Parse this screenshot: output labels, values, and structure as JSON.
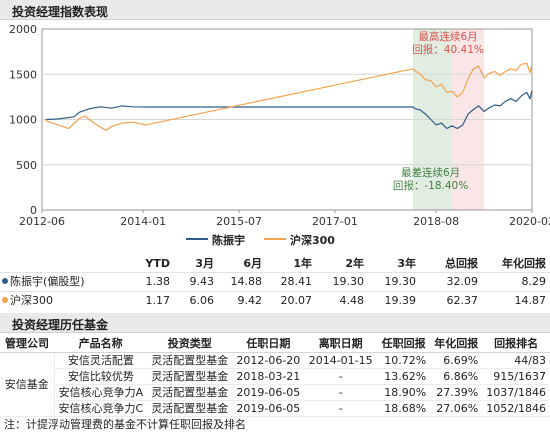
{
  "section1": {
    "title": "投资经理指数表现"
  },
  "chart_data": {
    "type": "line",
    "x_ticks": [
      "2012-06",
      "2014-01",
      "2015-07",
      "2017-01",
      "2018-08",
      "2020-02"
    ],
    "y_ticks": [
      "2000",
      "1500",
      "1000",
      "500",
      "0"
    ],
    "ylim": [
      0,
      2000
    ],
    "xlim": [
      "2012-06",
      "2020-02"
    ],
    "series": [
      {
        "name": "陈振宇",
        "color": "#2f5d8a",
        "points": [
          [
            "2012-06-20",
            1000
          ],
          [
            "2012-09",
            1005
          ],
          [
            "2012-12",
            1030
          ],
          [
            "2013-01",
            1080
          ],
          [
            "2013-03",
            1120
          ],
          [
            "2013-05",
            1140
          ],
          [
            "2013-07",
            1125
          ],
          [
            "2013-09",
            1150
          ],
          [
            "2013-11",
            1140
          ],
          [
            "2014-01-15",
            1138
          ],
          [
            "2018-03-21",
            1138
          ],
          [
            "2018-04",
            1120
          ],
          [
            "2018-05",
            1105
          ],
          [
            "2018-06",
            1060
          ],
          [
            "2018-07",
            1000
          ],
          [
            "2018-08",
            940
          ],
          [
            "2018-09",
            960
          ],
          [
            "2018-10",
            900
          ],
          [
            "2018-11",
            930
          ],
          [
            "2018-12",
            900
          ],
          [
            "2019-01",
            940
          ],
          [
            "2019-02",
            1060
          ],
          [
            "2019-03",
            1110
          ],
          [
            "2019-04",
            1150
          ],
          [
            "2019-05",
            1090
          ],
          [
            "2019-06",
            1130
          ],
          [
            "2019-07",
            1160
          ],
          [
            "2019-08",
            1150
          ],
          [
            "2019-09",
            1200
          ],
          [
            "2019-10",
            1230
          ],
          [
            "2019-11",
            1200
          ],
          [
            "2019-12",
            1260
          ],
          [
            "2020-01",
            1300
          ],
          [
            "2020-01-20",
            1230
          ],
          [
            "2020-02",
            1320
          ]
        ]
      },
      {
        "name": "沪深300",
        "color": "#f2a24a",
        "points": [
          [
            "2012-06-20",
            1000
          ],
          [
            "2012-07",
            980
          ],
          [
            "2012-09",
            940
          ],
          [
            "2012-11",
            900
          ],
          [
            "2013-01",
            1010
          ],
          [
            "2013-02",
            1040
          ],
          [
            "2013-04",
            950
          ],
          [
            "2013-06",
            880
          ],
          [
            "2013-07",
            920
          ],
          [
            "2013-09",
            960
          ],
          [
            "2013-11",
            970
          ],
          [
            "2014-01-15",
            940
          ],
          [
            "2018-03-21",
            1560
          ],
          [
            "2018-04",
            1540
          ],
          [
            "2018-05",
            1500
          ],
          [
            "2018-06",
            1440
          ],
          [
            "2018-07",
            1430
          ],
          [
            "2018-08",
            1360
          ],
          [
            "2018-09",
            1390
          ],
          [
            "2018-10",
            1300
          ],
          [
            "2018-11",
            1310
          ],
          [
            "2018-12",
            1250
          ],
          [
            "2019-01",
            1300
          ],
          [
            "2019-02",
            1450
          ],
          [
            "2019-03",
            1560
          ],
          [
            "2019-04",
            1590
          ],
          [
            "2019-05",
            1460
          ],
          [
            "2019-06",
            1510
          ],
          [
            "2019-07",
            1530
          ],
          [
            "2019-08",
            1490
          ],
          [
            "2019-09",
            1530
          ],
          [
            "2019-10",
            1560
          ],
          [
            "2019-11",
            1540
          ],
          [
            "2019-12",
            1610
          ],
          [
            "2020-01",
            1620
          ],
          [
            "2020-01-20",
            1520
          ],
          [
            "2020-02",
            1610
          ]
        ]
      }
    ],
    "bands": [
      {
        "kind": "drawdown",
        "from": "2018-03-21",
        "to": "2018-11",
        "color": "#4d8f4d"
      },
      {
        "kind": "best",
        "from": "2018-11",
        "to": "2019-05",
        "color": "#e06666"
      }
    ],
    "annotations": {
      "best_title": "最高连续6月",
      "best_value": "回报：40.41%",
      "worst_title": "最差连续6月",
      "worst_value": "回报：-18.40%"
    },
    "legend": [
      "陈振宇",
      "沪深300"
    ]
  },
  "performance": {
    "headers": [
      "",
      "YTD",
      "3月",
      "6月",
      "1年",
      "2年",
      "3年",
      "总回报",
      "年化回报"
    ],
    "rows": [
      {
        "name": "陈振宇(偏股型)",
        "color": "#2f5d8a",
        "values": [
          "1.38",
          "9.43",
          "14.88",
          "28.41",
          "19.30",
          "19.30",
          "32.09",
          "8.29"
        ]
      },
      {
        "name": "沪深300",
        "color": "#f2a24a",
        "values": [
          "1.17",
          "6.06",
          "9.42",
          "20.07",
          "4.48",
          "19.39",
          "62.37",
          "14.87"
        ]
      }
    ]
  },
  "section2": {
    "title": "投资经理历任基金"
  },
  "history": {
    "headers": [
      "管理公司",
      "产品名称",
      "投资类型",
      "任职日期",
      "离职日期",
      "任职回报",
      "年化回报",
      "回报排名"
    ],
    "company": "安信基金",
    "rows": [
      [
        "安信灵活配置",
        "灵活配置型基金",
        "2012-06-20",
        "2014-01-15",
        "10.72%",
        "6.69%",
        "44/83"
      ],
      [
        "安信比较优势",
        "灵活配置型基金",
        "2018-03-21",
        "-",
        "13.62%",
        "6.86%",
        "915/1637"
      ],
      [
        "安信核心竞争力A",
        "灵活配置型基金",
        "2019-06-05",
        "-",
        "18.90%",
        "27.39%",
        "1037/1846"
      ],
      [
        "安信核心竞争力C",
        "灵活配置型基金",
        "2019-06-05",
        "-",
        "18.68%",
        "27.06%",
        "1052/1846"
      ]
    ]
  },
  "footnote": "注：计提浮动管理费的基金不计算任职回报及排名"
}
